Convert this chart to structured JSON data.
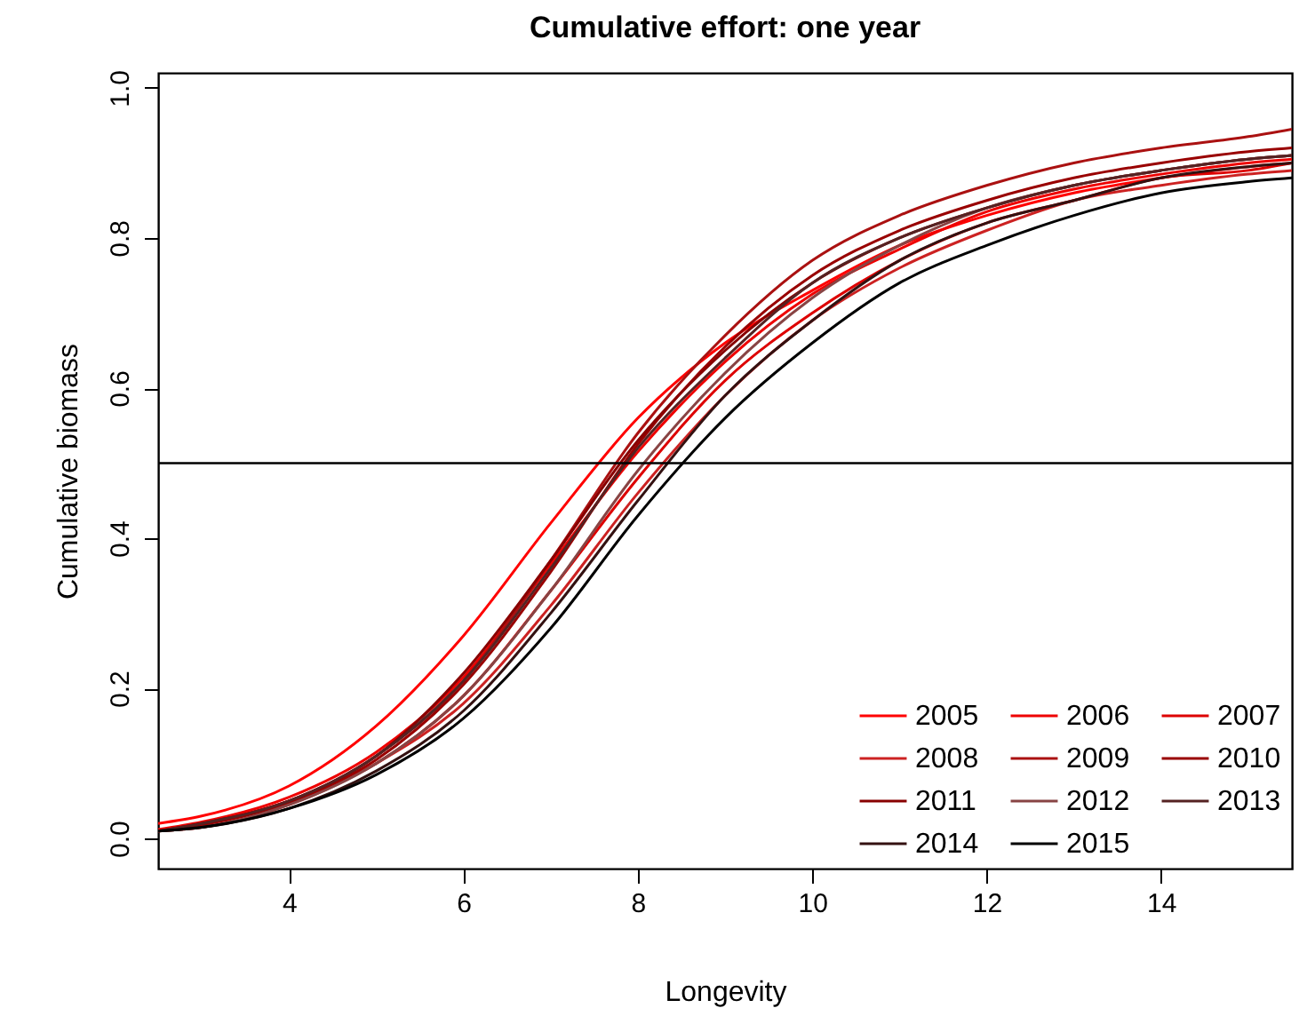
{
  "chart_data": {
    "type": "line",
    "title": "Cumulative effort: one year",
    "xlabel": "Longevity",
    "ylabel": "Cumulative biomass",
    "x": [
      2.5,
      3,
      4,
      5,
      6,
      7,
      8,
      9,
      10,
      11,
      12,
      13,
      14,
      15,
      15.5
    ],
    "xlim": [
      2.5,
      15.5
    ],
    "xticks": [
      4,
      6,
      8,
      10,
      12,
      14
    ],
    "ylim": [
      -0.04,
      1.02
    ],
    "yticks": [
      {
        "value": 0,
        "label": "0.0"
      },
      0.2,
      0.4,
      0.6,
      0.8,
      {
        "value": 1,
        "label": "1.0"
      }
    ],
    "grid": false,
    "legend": "bottom right",
    "marker": "none",
    "line_style": "solid",
    "ref_lines": [
      {
        "axis": "y",
        "value": 0.5,
        "color": "#000000"
      }
    ],
    "series": [
      {
        "name": "2005",
        "color": "#ff0000",
        "values": [
          0.02,
          0.03,
          0.07,
          0.15,
          0.27,
          0.42,
          0.56,
          0.66,
          0.73,
          0.79,
          0.83,
          0.86,
          0.88,
          0.895,
          0.9
        ]
      },
      {
        "name": "2006",
        "color": "#ee0000",
        "values": [
          0.012,
          0.022,
          0.055,
          0.115,
          0.215,
          0.365,
          0.515,
          0.635,
          0.725,
          0.785,
          0.835,
          0.865,
          0.885,
          0.9,
          0.905
        ]
      },
      {
        "name": "2007",
        "color": "#dd0000",
        "values": [
          0.01,
          0.02,
          0.05,
          0.1,
          0.19,
          0.33,
          0.48,
          0.61,
          0.7,
          0.77,
          0.82,
          0.85,
          0.88,
          0.89,
          0.9
        ]
      },
      {
        "name": "2008",
        "color": "#cc2222",
        "values": [
          0.01,
          0.015,
          0.045,
          0.1,
          0.18,
          0.31,
          0.46,
          0.59,
          0.69,
          0.76,
          0.81,
          0.85,
          0.87,
          0.885,
          0.89
        ]
      },
      {
        "name": "2009",
        "color": "#aa1111",
        "values": [
          0.01,
          0.02,
          0.05,
          0.11,
          0.21,
          0.37,
          0.54,
          0.67,
          0.77,
          0.83,
          0.87,
          0.9,
          0.92,
          0.935,
          0.945
        ]
      },
      {
        "name": "2010",
        "color": "#990000",
        "values": [
          0.01,
          0.018,
          0.048,
          0.105,
          0.205,
          0.355,
          0.525,
          0.655,
          0.75,
          0.81,
          0.85,
          0.88,
          0.9,
          0.915,
          0.92
        ]
      },
      {
        "name": "2011",
        "color": "#880000",
        "values": [
          0.01,
          0.02,
          0.05,
          0.11,
          0.22,
          0.37,
          0.53,
          0.65,
          0.74,
          0.8,
          0.84,
          0.87,
          0.89,
          0.905,
          0.91
        ]
      },
      {
        "name": "2012",
        "color": "#884444",
        "values": [
          0.01,
          0.015,
          0.045,
          0.1,
          0.19,
          0.33,
          0.49,
          0.62,
          0.72,
          0.79,
          0.84,
          0.87,
          0.89,
          0.905,
          0.91
        ]
      },
      {
        "name": "2013",
        "color": "#552222",
        "values": [
          0.01,
          0.02,
          0.05,
          0.11,
          0.21,
          0.36,
          0.52,
          0.64,
          0.74,
          0.8,
          0.84,
          0.87,
          0.89,
          0.905,
          0.91
        ]
      },
      {
        "name": "2014",
        "color": "#331111",
        "values": [
          0.01,
          0.015,
          0.04,
          0.09,
          0.17,
          0.3,
          0.45,
          0.59,
          0.69,
          0.77,
          0.82,
          0.85,
          0.88,
          0.895,
          0.9
        ]
      },
      {
        "name": "2015",
        "color": "#000000",
        "values": [
          0.01,
          0.015,
          0.04,
          0.085,
          0.16,
          0.28,
          0.43,
          0.56,
          0.66,
          0.74,
          0.79,
          0.83,
          0.86,
          0.875,
          0.88
        ]
      }
    ]
  }
}
